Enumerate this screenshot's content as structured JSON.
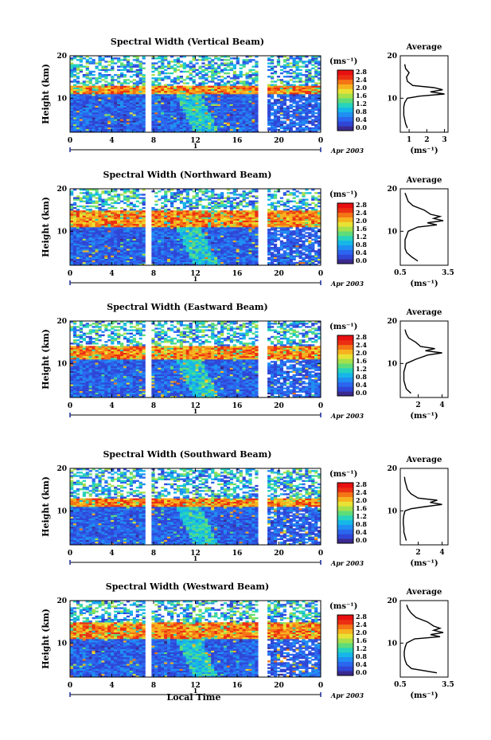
{
  "figure": {
    "xlabel": "Local Time",
    "date_label": "Apr 2003",
    "colorbar_unit_label": "(ms⁻¹)",
    "average_title": "Average",
    "ylabel": "Height (km)"
  },
  "colorbar_ticks": [
    "0.0",
    "0.4",
    "0.8",
    "1.2",
    "1.6",
    "2.0",
    "2.4",
    "2.8"
  ],
  "colormap": [
    "#3b2a8f",
    "#2f46d6",
    "#2b66ee",
    "#1f8ff2",
    "#16b7e8",
    "#27d3bd",
    "#5fdc7a",
    "#a6e04a",
    "#e8e234",
    "#f6b21f",
    "#f47416",
    "#ec2f13",
    "#e81010"
  ],
  "chart_data": [
    {
      "type": "heatmap",
      "title": "Spectral Width (Vertical Beam)",
      "xlabel": "Local Time",
      "ylabel": "Height (km)",
      "xlim": [
        0,
        24
      ],
      "ylim": [
        2,
        20
      ],
      "x_ticks": [
        "0",
        "4",
        "8",
        "12",
        "16",
        "20",
        "0"
      ],
      "y_ticks": [
        "10",
        "20"
      ],
      "day_marker": "1",
      "colorbar": {
        "label": "(ms⁻¹)",
        "range": [
          0.0,
          2.8
        ]
      },
      "data_gaps_hours": [
        [
          7.3,
          7.9
        ],
        [
          18.0,
          18.8
        ]
      ],
      "high_width_layer_km": [
        11,
        13
      ],
      "average_profile": {
        "title": "Average",
        "xlabel": "(ms⁻¹)",
        "xlim": [
          0.5,
          3.2
        ],
        "x_ticks": [
          "1",
          "2",
          "3"
        ],
        "y_ticks": [
          "10",
          "20"
        ],
        "height_km": [
          3,
          4,
          5,
          6,
          7,
          8,
          9,
          10,
          10.5,
          11,
          11.5,
          12,
          12.5,
          13,
          14,
          15,
          16,
          17,
          18
        ],
        "width_ms": [
          0.9,
          0.8,
          0.75,
          0.7,
          0.7,
          0.7,
          0.75,
          0.9,
          1.6,
          3.0,
          2.2,
          2.9,
          2.4,
          1.2,
          0.9,
          0.85,
          1.0,
          0.8,
          0.75
        ]
      }
    },
    {
      "type": "heatmap",
      "title": "Spectral Width (Northward Beam)",
      "xlabel": "Local Time",
      "ylabel": "Height (km)",
      "xlim": [
        0,
        24
      ],
      "ylim": [
        2,
        20
      ],
      "x_ticks": [
        "0",
        "4",
        "8",
        "12",
        "16",
        "20",
        "0"
      ],
      "y_ticks": [
        "10",
        "20"
      ],
      "day_marker": "1",
      "colorbar": {
        "label": "(ms⁻¹)",
        "range": [
          0.0,
          2.8
        ]
      },
      "data_gaps_hours": [
        [
          7.3,
          7.9
        ],
        [
          18.0,
          18.8
        ]
      ],
      "high_width_layer_km": [
        11,
        15
      ],
      "average_profile": {
        "title": "Average",
        "xlabel": "(ms⁻¹)",
        "xlim": [
          0.5,
          3.5
        ],
        "x_ticks": [
          "0.5",
          "3.5"
        ],
        "y_ticks": [
          "10",
          "20"
        ],
        "height_km": [
          3,
          4,
          5,
          6,
          7,
          8,
          9,
          10,
          11,
          11.5,
          12,
          12.5,
          13,
          13.5,
          14,
          15,
          16,
          17,
          18,
          19
        ],
        "width_ms": [
          1.6,
          1.2,
          0.9,
          0.8,
          0.8,
          0.8,
          0.9,
          1.0,
          1.6,
          2.8,
          2.2,
          3.2,
          2.6,
          3.0,
          2.4,
          2.0,
          1.3,
          1.0,
          0.9,
          0.8
        ]
      }
    },
    {
      "type": "heatmap",
      "title": "Spectral Width (Eastward Beam)",
      "xlabel": "Local Time",
      "ylabel": "Height (km)",
      "xlim": [
        0,
        24
      ],
      "ylim": [
        2,
        20
      ],
      "x_ticks": [
        "0",
        "4",
        "8",
        "12",
        "16",
        "20",
        "0"
      ],
      "y_ticks": [
        "10",
        "20"
      ],
      "day_marker": "1",
      "colorbar": {
        "label": "(ms⁻¹)",
        "range": [
          0.0,
          2.8
        ]
      },
      "data_gaps_hours": [
        [
          7.3,
          7.9
        ],
        [
          18.0,
          18.8
        ]
      ],
      "high_width_layer_km": [
        11,
        14
      ],
      "average_profile": {
        "title": "Average",
        "xlabel": "(ms⁻¹)",
        "xlim": [
          0.5,
          4.5
        ],
        "x_ticks": [
          "2",
          "4"
        ],
        "y_ticks": [
          "10",
          "20"
        ],
        "height_km": [
          3,
          4,
          5,
          6,
          7,
          8,
          9,
          10,
          11,
          12,
          12.5,
          13,
          13.5,
          14,
          15,
          16,
          17,
          18
        ],
        "width_ms": [
          1.4,
          1.0,
          0.9,
          0.8,
          0.8,
          0.8,
          0.9,
          1.0,
          1.8,
          2.8,
          4.0,
          2.6,
          3.4,
          2.2,
          1.8,
          1.2,
          1.0,
          0.9
        ]
      }
    },
    {
      "type": "heatmap",
      "title": "Spectral Width (Southward Beam)",
      "xlabel": "Local Time",
      "ylabel": "Height (km)",
      "xlim": [
        0,
        24
      ],
      "ylim": [
        2,
        20
      ],
      "x_ticks": [
        "0",
        "4",
        "8",
        "12",
        "16",
        "20",
        "0"
      ],
      "y_ticks": [
        "10",
        "20"
      ],
      "day_marker": "1",
      "colorbar": {
        "label": "(ms⁻¹)",
        "range": [
          0.0,
          2.8
        ]
      },
      "data_gaps_hours": [
        [
          7.3,
          7.9
        ],
        [
          18.0,
          18.8
        ]
      ],
      "high_width_layer_km": [
        11,
        13
      ],
      "average_profile": {
        "title": "Average",
        "xlabel": "(ms⁻¹)",
        "xlim": [
          0.5,
          4.5
        ],
        "x_ticks": [
          "2",
          "4"
        ],
        "y_ticks": [
          "10",
          "20"
        ],
        "height_km": [
          3,
          4,
          5,
          6,
          7,
          8,
          9,
          10,
          10.5,
          11,
          11.5,
          12,
          12.5,
          13,
          14,
          15,
          16,
          17,
          18
        ],
        "width_ms": [
          1.0,
          0.9,
          0.8,
          0.8,
          0.75,
          0.75,
          0.8,
          0.9,
          1.4,
          2.6,
          4.0,
          3.0,
          3.6,
          2.0,
          1.4,
          1.1,
          1.0,
          0.9,
          0.85
        ]
      }
    },
    {
      "type": "heatmap",
      "title": "Spectral Width (Westward Beam)",
      "xlabel": "Local Time",
      "ylabel": "Height (km)",
      "xlim": [
        0,
        24
      ],
      "ylim": [
        2,
        20
      ],
      "x_ticks": [
        "0",
        "4",
        "8",
        "12",
        "16",
        "20",
        "0"
      ],
      "y_ticks": [
        "10",
        "20"
      ],
      "day_marker": "1",
      "colorbar": {
        "label": "(ms⁻¹)",
        "range": [
          0.0,
          2.8
        ]
      },
      "data_gaps_hours": [
        [
          7.3,
          7.9
        ],
        [
          18.0,
          18.8
        ]
      ],
      "high_width_layer_km": [
        11,
        15
      ],
      "average_profile": {
        "title": "Average",
        "xlabel": "(ms⁻¹)",
        "xlim": [
          0.5,
          3.5
        ],
        "x_ticks": [
          "0.5",
          "3.5"
        ],
        "y_ticks": [
          "10",
          "20"
        ],
        "height_km": [
          3,
          4,
          5,
          6,
          7,
          8,
          9,
          10,
          11,
          11.5,
          12,
          12.5,
          13,
          13.5,
          14,
          15,
          16,
          17,
          18,
          19
        ],
        "width_ms": [
          2.8,
          1.2,
          0.9,
          0.8,
          0.75,
          0.75,
          0.8,
          0.9,
          1.4,
          3.0,
          2.4,
          3.2,
          2.6,
          3.0,
          2.6,
          2.2,
          1.5,
          1.2,
          1.0,
          0.9
        ]
      }
    }
  ]
}
